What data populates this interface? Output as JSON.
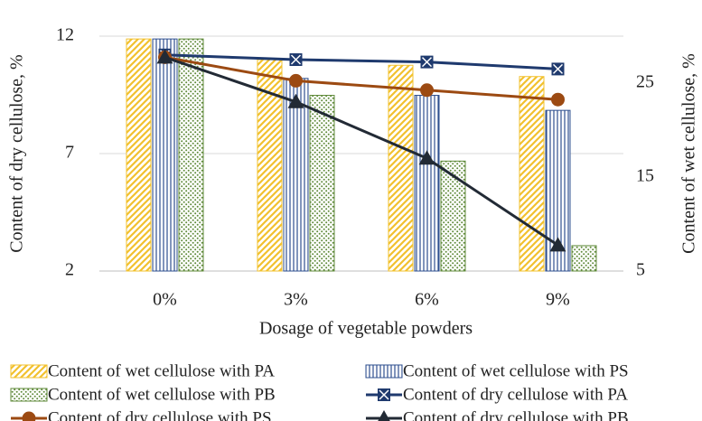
{
  "chart_data": {
    "type": "bar",
    "xlabel": "Dosage of vegetable powders",
    "ylabel": "Content of dry cellulose, %",
    "y2label": "Content of wet cellulose, %",
    "categories": [
      "0%",
      "3%",
      "6%",
      "9%"
    ],
    "ylim": [
      2,
      12
    ],
    "yticks": [
      2,
      7,
      12
    ],
    "y2lim": [
      5,
      30
    ],
    "y2ticks": [
      5,
      15,
      25
    ],
    "grid": true,
    "legend": "bottom",
    "series": [
      {
        "name": "Content of wet cellulose with PA",
        "type": "bar",
        "axis": "y2",
        "color": "#f2c12e",
        "pattern": "diagonal",
        "values": [
          29.7,
          27.5,
          26.9,
          25.7
        ]
      },
      {
        "name": "Content of wet cellulose with PS",
        "type": "bar",
        "axis": "y2",
        "color": "#2e4f8f",
        "pattern": "vertical",
        "values": [
          29.7,
          25.5,
          23.7,
          22.1
        ]
      },
      {
        "name": "Content of wet cellulose with PB",
        "type": "bar",
        "axis": "y2",
        "color": "#5f8a3a",
        "pattern": "dots",
        "values": [
          29.7,
          23.7,
          16.7,
          7.7
        ]
      },
      {
        "name": "Content of dry cellulose with PA",
        "type": "line",
        "axis": "y",
        "color": "#1f3a6e",
        "marker": "square-x",
        "values": [
          11.2,
          11.0,
          10.9,
          10.6
        ]
      },
      {
        "name": "Content of dry cellulose with PS",
        "type": "line",
        "axis": "y",
        "color": "#9c4a12",
        "marker": "circle",
        "values": [
          11.1,
          10.1,
          9.7,
          9.3
        ]
      },
      {
        "name": "Content of dry cellulose with PB",
        "type": "line",
        "axis": "y",
        "color": "#222a35",
        "marker": "triangle",
        "values": [
          11.1,
          9.2,
          6.8,
          3.1
        ]
      }
    ]
  }
}
